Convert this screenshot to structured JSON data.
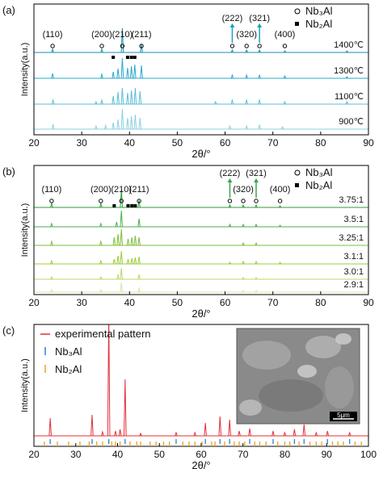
{
  "chart_data": [
    {
      "type": "xrd",
      "panel_label": "(a)",
      "ylabel": "Intensity(a.u.)",
      "xlabel": "2θ/°",
      "xlim": [
        20,
        90
      ],
      "xticks": [
        20,
        30,
        40,
        50,
        60,
        70,
        80,
        90
      ],
      "legend": [
        {
          "symbol": "circle",
          "text": "Nb₃Al"
        },
        {
          "symbol": "square",
          "text": "Nb₂Al"
        }
      ],
      "annotations": [
        {
          "text": "(110)",
          "x": 23.9
        },
        {
          "text": "(200)",
          "x": 34.2
        },
        {
          "text": "(210)",
          "x": 38.5
        },
        {
          "text": "(211)",
          "x": 42.5
        },
        {
          "text": "(222)",
          "x": 61.5,
          "arrow": true
        },
        {
          "text": "(320)",
          "x": 64.5
        },
        {
          "text": "(321)",
          "x": 67.2,
          "arrow": true
        },
        {
          "text": "(400)",
          "x": 72.5
        }
      ],
      "arrow_color": "#1a9fc0",
      "square_markers_x": [
        36.6,
        39.6,
        40.4,
        41.1
      ],
      "series": [
        {
          "name": "1400℃",
          "color": "#1b8db0",
          "x": [
            23.9,
            34.2,
            38.5,
            42.5,
            61.5,
            64.5,
            67.2,
            72.5,
            85.5
          ],
          "values": [
            4,
            4,
            30,
            10,
            3,
            3,
            3,
            2,
            2
          ]
        },
        {
          "name": "1300℃",
          "color": "#2aa7cb",
          "x": [
            23.9,
            34.2,
            36.6,
            37.6,
            38.5,
            39.6,
            40.4,
            41.1,
            42.5,
            61.5,
            64.5,
            67.2,
            72.5,
            85.5
          ],
          "values": [
            6,
            5,
            8,
            12,
            25,
            13,
            15,
            17,
            16,
            4,
            4,
            4,
            3,
            2
          ]
        },
        {
          "name": "1100℃",
          "color": "#5ebcd8",
          "x": [
            24.0,
            33.0,
            34.2,
            36.6,
            37.6,
            38.5,
            39.6,
            40.4,
            41.2,
            42.2,
            58.0,
            61.5,
            64.5,
            67.2,
            72.5,
            85.5
          ],
          "values": [
            5,
            3,
            5,
            10,
            15,
            20,
            14,
            17,
            20,
            16,
            3,
            5,
            5,
            5,
            3,
            3
          ]
        },
        {
          "name": "900℃",
          "color": "#8ccfe2",
          "x": [
            24.0,
            33.0,
            35.0,
            36.6,
            37.6,
            38.5,
            39.6,
            40.4,
            41.2,
            42.2,
            61.0,
            64.5,
            67.2,
            72.0
          ],
          "values": [
            6,
            4,
            5,
            8,
            12,
            25,
            14,
            16,
            18,
            14,
            4,
            4,
            5,
            3
          ]
        }
      ]
    },
    {
      "type": "xrd",
      "panel_label": "(b)",
      "ylabel": "Intensity(a.u.)",
      "xlabel": "2θ/°",
      "xlim": [
        20,
        90
      ],
      "xticks": [
        20,
        30,
        40,
        50,
        60,
        70,
        80,
        90
      ],
      "legend": [
        {
          "symbol": "circle",
          "text": "Nb₃Al"
        },
        {
          "symbol": "square",
          "text": "Nb₂Al"
        }
      ],
      "annotations": [
        {
          "text": "(110)",
          "x": 23.7
        },
        {
          "text": "(200)",
          "x": 34.0
        },
        {
          "text": "(210)",
          "x": 38.3
        },
        {
          "text": "(211)",
          "x": 42.0
        },
        {
          "text": "(222)",
          "x": 61.0,
          "arrow": true
        },
        {
          "text": "(320)",
          "x": 63.8
        },
        {
          "text": "(321)",
          "x": 66.5,
          "arrow": true
        },
        {
          "text": "(400)",
          "x": 71.5
        }
      ],
      "arrow_color": "#3aa848",
      "square_markers_x": [
        36.8,
        39.7,
        40.5,
        41.2
      ],
      "series": [
        {
          "name": "3.75:1",
          "color": "#2e9b3a",
          "x": [
            23.7,
            34.0,
            38.3,
            42.0,
            61.0,
            63.8,
            66.5,
            71.5
          ],
          "values": [
            5,
            5,
            22,
            9,
            3,
            3,
            3,
            2
          ]
        },
        {
          "name": "3.5:1",
          "color": "#4caf50",
          "x": [
            23.7,
            34.0,
            37.3,
            38.3,
            42.0,
            61.0,
            63.8,
            66.5,
            71.5
          ],
          "values": [
            4,
            4,
            6,
            20,
            10,
            3,
            3,
            3,
            2
          ]
        },
        {
          "name": "3.25:1",
          "color": "#7dbf3a",
          "x": [
            23.7,
            34.0,
            36.8,
            37.6,
            38.3,
            39.7,
            40.5,
            41.2,
            42.0,
            63.8,
            66.5
          ],
          "values": [
            5,
            5,
            10,
            14,
            20,
            8,
            10,
            12,
            10,
            3,
            3
          ]
        },
        {
          "name": "3.1:1",
          "color": "#9ccc3c",
          "x": [
            23.7,
            34.0,
            36.8,
            37.6,
            38.3,
            39.7,
            40.5,
            41.2,
            42.0,
            61.0,
            63.8,
            66.5,
            71.5
          ],
          "values": [
            4,
            4,
            6,
            10,
            16,
            6,
            7,
            8,
            9,
            2,
            3,
            3,
            2
          ]
        },
        {
          "name": "3.0:1",
          "color": "#b9d86a",
          "x": [
            23.7,
            34.0,
            37.6,
            38.3,
            42.0,
            63.8,
            66.5
          ],
          "values": [
            3,
            3,
            6,
            14,
            6,
            2,
            2
          ]
        },
        {
          "name": "2.9:1",
          "color": "#d6e6a0",
          "x": [
            23.7,
            34.0,
            38.3,
            42.0,
            63.8,
            66.5
          ],
          "values": [
            3,
            3,
            12,
            5,
            2,
            2
          ]
        }
      ]
    },
    {
      "type": "xrd_ref",
      "panel_label": "(c)",
      "ylabel": "Intensity(a.u.)",
      "xlabel": "2θ/°",
      "xlim": [
        20,
        100
      ],
      "xticks": [
        20,
        30,
        40,
        50,
        60,
        70,
        80,
        90,
        100
      ],
      "inset_scale_label": "5μm",
      "series": [
        {
          "name": "experimental pattern",
          "color": "#e0303a",
          "x": [
            23.9,
            33.9,
            36.4,
            37.9,
            39.5,
            40.6,
            41.8,
            45.5,
            54.0,
            58.5,
            61.0,
            64.5,
            66.8,
            69.1,
            71.6,
            77.2,
            80.0,
            82.3,
            84.6,
            87.5,
            90.2,
            95.5
          ],
          "values": [
            22,
            26,
            5,
            150,
            6,
            8,
            70,
            3,
            4,
            4,
            16,
            24,
            20,
            6,
            9,
            6,
            4,
            8,
            14,
            4,
            6,
            4
          ]
        }
      ],
      "references": [
        {
          "name": "Nb₃Al",
          "color": "#2a7fd4",
          "x": [
            23.9,
            33.9,
            37.9,
            41.8,
            54.0,
            61.0,
            64.5,
            66.8,
            71.6,
            77.2,
            82.3,
            84.6,
            90.2,
            95.5
          ]
        },
        {
          "name": "Nb₂Al",
          "color": "#f0a020",
          "x": [
            22.5,
            25.6,
            28.3,
            31.0,
            33.2,
            35.0,
            36.4,
            38.6,
            39.5,
            40.6,
            43.0,
            44.6,
            45.5,
            47.8,
            49.2,
            51.0,
            52.4,
            55.6,
            57.1,
            58.5,
            60.2,
            62.5,
            63.3,
            65.6,
            67.9,
            69.1,
            70.4,
            72.8,
            74.0,
            75.5,
            78.3,
            80.0,
            81.2,
            83.4,
            86.0,
            87.5,
            88.8,
            91.4,
            92.7,
            94.0,
            96.8,
            98.3
          ]
        }
      ]
    }
  ]
}
